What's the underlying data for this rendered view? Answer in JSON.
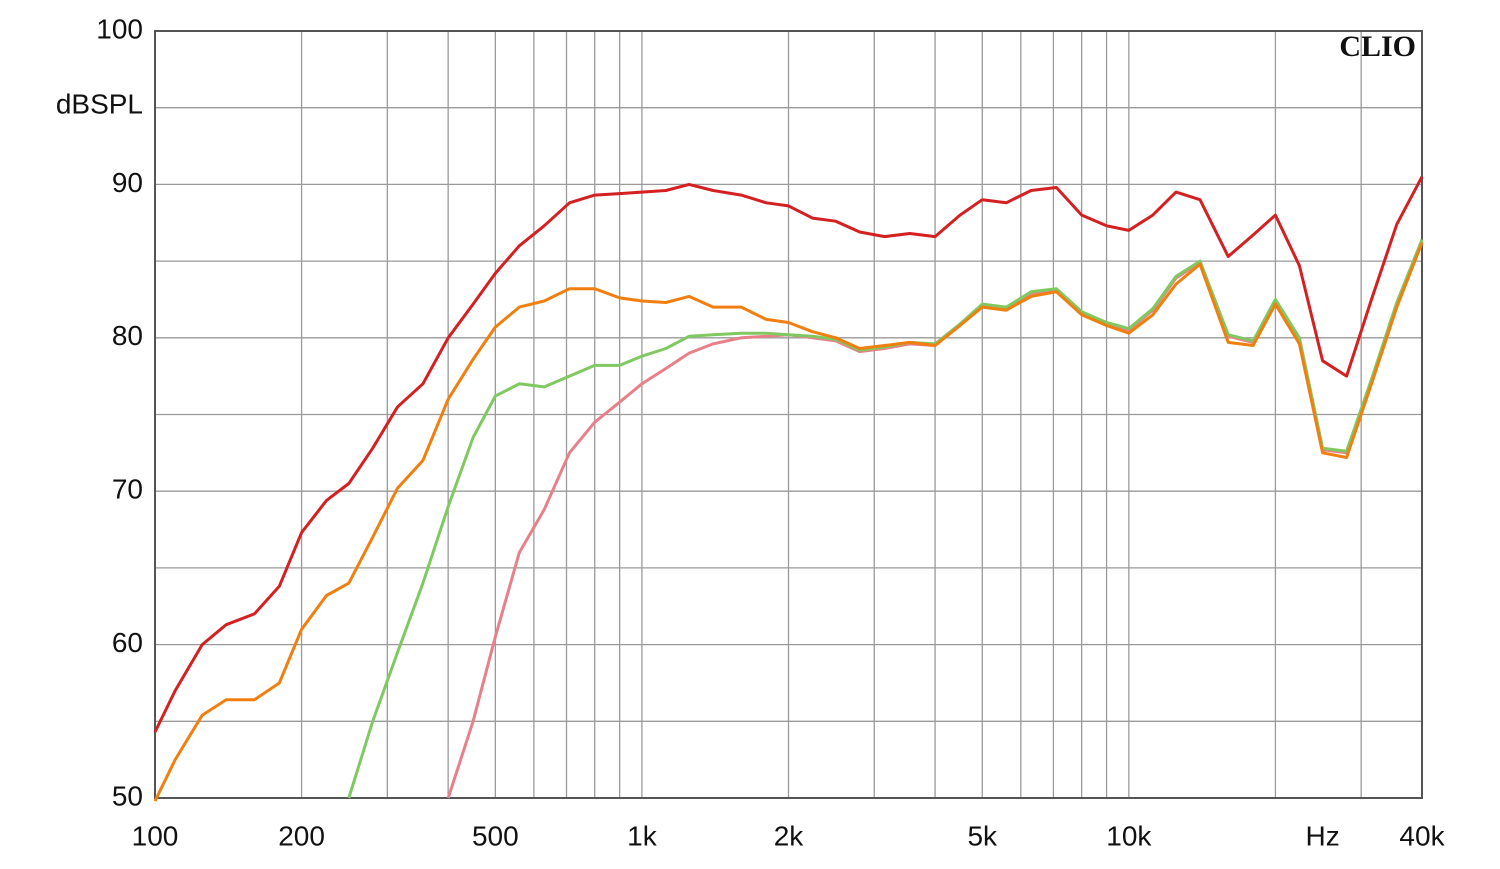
{
  "chart_data": {
    "type": "line",
    "watermark": "CLIO",
    "y_label": "dBSPL",
    "x_scale": "log",
    "grid": true,
    "x": [
      100,
      110,
      125,
      140,
      160,
      180,
      200,
      225,
      250,
      280,
      315,
      355,
      400,
      450,
      500,
      560,
      630,
      710,
      800,
      900,
      1000,
      1120,
      1250,
      1400,
      1600,
      1800,
      2000,
      2240,
      2500,
      2800,
      3150,
      3550,
      4000,
      4500,
      5000,
      5600,
      6300,
      7100,
      8000,
      9000,
      10000,
      11200,
      12500,
      14000,
      16000,
      18000,
      20000,
      22400,
      25000,
      28000,
      31500,
      35500,
      40000
    ],
    "xlim": [
      100,
      40000
    ],
    "xticks": [
      100,
      200,
      500,
      {
        "value": 1000,
        "label": "1k"
      },
      {
        "value": 2000,
        "label": "2k"
      },
      {
        "value": 5000,
        "label": "5k"
      },
      {
        "value": 10000,
        "label": "10k"
      },
      {
        "value": 25000,
        "label": "Hz"
      },
      {
        "value": 40000,
        "label": "40k"
      }
    ],
    "ylim": [
      50,
      100
    ],
    "yticks": [
      50,
      60,
      70,
      80,
      90,
      100
    ],
    "series": [
      {
        "color": "#e8808a",
        "values": [
          null,
          null,
          null,
          null,
          null,
          null,
          null,
          null,
          null,
          null,
          null,
          null,
          50,
          55,
          60.5,
          66,
          68.8,
          72.5,
          74.5,
          75.8,
          77,
          78,
          79,
          79.6,
          80,
          80.1,
          80.2,
          80,
          79.8,
          79.1,
          79.3,
          79.6,
          79.5,
          80.8,
          82.1,
          81.9,
          82.9,
          83.1,
          81.6,
          80.9,
          80.5,
          81.8,
          83.9,
          84.9,
          80.1,
          79.7,
          82.4,
          79.9,
          72.7,
          72.5,
          77.2,
          82.2,
          86.3
        ]
      },
      {
        "color": "#80c860",
        "values": [
          null,
          null,
          null,
          null,
          null,
          null,
          null,
          null,
          50,
          55,
          59.5,
          64,
          69,
          73.5,
          76.2,
          77,
          76.8,
          77.5,
          78.2,
          78.2,
          78.8,
          79.3,
          80.1,
          80.2,
          80.3,
          80.3,
          80.2,
          80.1,
          79.9,
          79.2,
          79.4,
          79.7,
          79.6,
          80.9,
          82.2,
          82,
          83,
          83.2,
          81.7,
          81,
          80.6,
          81.9,
          84,
          85,
          80.2,
          79.8,
          82.5,
          80,
          72.8,
          72.6,
          77.3,
          82.3,
          86.4
        ]
      },
      {
        "color": "#f07f10",
        "values": [
          49.8,
          52.5,
          55.4,
          56.4,
          56.4,
          57.5,
          61,
          63.2,
          64,
          67,
          70.2,
          72,
          76,
          78.6,
          80.7,
          82,
          82.4,
          83.2,
          83.2,
          82.6,
          82.4,
          82.3,
          82.7,
          82,
          82,
          81.2,
          81,
          80.4,
          80,
          79.3,
          79.5,
          79.7,
          79.5,
          80.8,
          82,
          81.8,
          82.7,
          83,
          81.5,
          80.8,
          80.3,
          81.5,
          83.5,
          84.8,
          79.7,
          79.5,
          82.2,
          79.6,
          72.5,
          72.2,
          77,
          82,
          86.2
        ]
      },
      {
        "color": "#d42020",
        "values": [
          54.3,
          57,
          60,
          61.3,
          62,
          63.8,
          67.3,
          69.4,
          70.5,
          72.8,
          75.5,
          77,
          80,
          82.2,
          84.2,
          86,
          87.3,
          88.8,
          89.3,
          89.4,
          89.5,
          89.6,
          90,
          89.6,
          89.3,
          88.8,
          88.6,
          87.8,
          87.6,
          86.9,
          86.6,
          86.8,
          86.6,
          88,
          89,
          88.8,
          89.6,
          89.8,
          88,
          87.3,
          87,
          88,
          89.5,
          89,
          85.3,
          86.7,
          88,
          84.7,
          78.5,
          77.5,
          82.5,
          87.4,
          90.5
        ]
      }
    ]
  }
}
